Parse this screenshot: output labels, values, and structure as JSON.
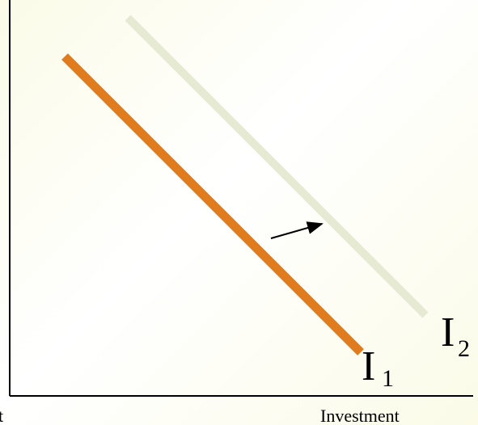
{
  "diagram": {
    "y_axis_label_fragment": "t",
    "x_axis_label": "Investment",
    "curves": [
      {
        "main": "I",
        "sub": "1",
        "color": "#e07b1e"
      },
      {
        "main": "I",
        "sub": "2",
        "color": "#e6ead2"
      }
    ],
    "shift_arrow": {
      "direction": "right",
      "meaning": "shift from I1 to I2"
    },
    "colors": {
      "axis": "#000000",
      "background_tint": "#fbfbe8"
    }
  }
}
